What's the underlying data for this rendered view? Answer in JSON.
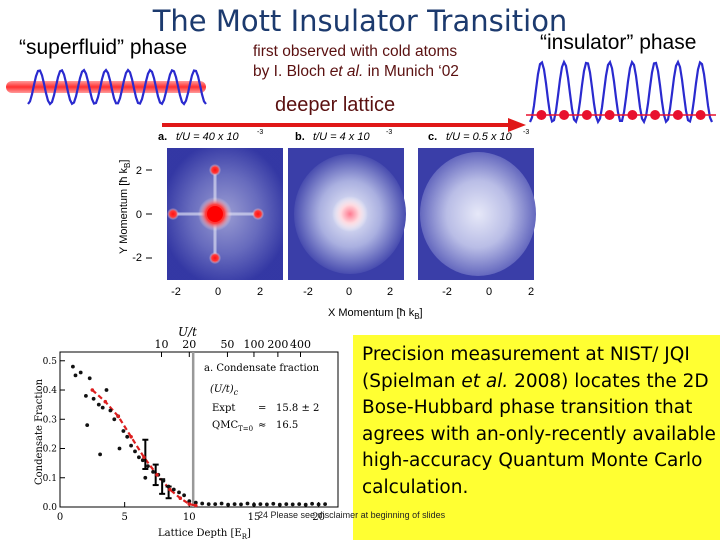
{
  "slide": {
    "title": "The Mott Insulator Transition",
    "superfluid_label": "“superfluid” phase",
    "insulator_label": "“insulator” phase",
    "citation_line1": "first observed with cold atoms",
    "citation_line2_pre": "by I. Bloch ",
    "citation_line2_em": "et al.",
    "citation_line2_post": " in Munich ‘02",
    "arrow_label": "deeper lattice",
    "disclaimer": "Please see disclaimer at beginning of slides",
    "page_number": "24"
  },
  "figure_top": {
    "panels": [
      {
        "letter": "a.",
        "label": "t/U = 40 x 10",
        "exponent": "-3"
      },
      {
        "letter": "b.",
        "label": "t/U = 4 x 10",
        "exponent": "-3"
      },
      {
        "letter": "c.",
        "label": "t/U = 0.5 x 10",
        "exponent": "-3"
      }
    ],
    "y_axis_label": "Y Momentum [ħ k",
    "y_axis_sub": "B",
    "x_axis_label": "X Momentum [ħ k",
    "x_axis_sub": "B",
    "y_ticks": [
      "2",
      "0",
      "-2"
    ],
    "x_ticks": [
      "-2",
      "0",
      "2"
    ]
  },
  "note": {
    "text_pre": "Precision measurement at NIST/ JQI (Spielman ",
    "text_em": "et al.",
    "text_post": " 2008) locates the 2D Bose-Hubbard phase transition that agrees with an-only-recently available high-accuracy Quantum Monte Carlo calculation."
  },
  "chart_data": {
    "type": "scatter",
    "title": "a. Condensate fraction",
    "xlabel": "Lattice Depth [E",
    "xlabel_sub": "R",
    "ylabel": "Condensate Fraction",
    "top_xlabel": "U/t",
    "top_ticks": [
      "10",
      "20",
      "50",
      "100",
      "200",
      "400"
    ],
    "top_tick_positions": [
      7.85,
      10.0,
      12.95,
      15.0,
      16.85,
      18.6
    ],
    "x_ticks": [
      "0",
      "5",
      "10",
      "15",
      "20"
    ],
    "y_ticks": [
      "0.0",
      "0.1",
      "0.2",
      "0.3",
      "0.4",
      "0.5"
    ],
    "xlim": [
      0,
      21.5
    ],
    "ylim": [
      0,
      0.53
    ],
    "vline_x": 10.3,
    "annotations": {
      "critical_label": "(U/t)",
      "critical_sub": "c",
      "expt_label": "Expt",
      "expt_eq": "=",
      "expt_value": "15.8 ± 2",
      "qmc_label": "QMC",
      "qmc_sub": "T=0",
      "qmc_eq": "≈",
      "qmc_value": "16.5"
    },
    "series": [
      {
        "name": "data",
        "color": "#111111",
        "x": [
          1.0,
          1.2,
          1.6,
          2.0,
          2.3,
          2.6,
          3.0,
          3.3,
          3.6,
          3.9,
          4.2,
          4.5,
          4.9,
          5.2,
          5.5,
          5.8,
          6.1,
          6.4,
          6.8,
          7.2,
          7.6,
          8.0,
          8.4,
          8.8,
          9.2,
          9.6,
          10.0,
          10.5,
          11.0,
          11.5,
          12.0,
          12.5,
          13.0,
          13.5,
          14.0,
          14.5,
          15.0,
          15.5,
          16.0,
          16.5,
          17.0,
          17.5,
          18.0,
          18.5,
          19.0,
          19.5,
          20.0,
          20.5,
          2.1,
          3.1,
          4.6,
          6.6
        ],
        "y": [
          0.48,
          0.45,
          0.46,
          0.38,
          0.44,
          0.37,
          0.35,
          0.34,
          0.4,
          0.33,
          0.3,
          0.31,
          0.26,
          0.24,
          0.21,
          0.19,
          0.17,
          0.16,
          0.14,
          0.12,
          0.11,
          0.09,
          0.07,
          0.06,
          0.05,
          0.04,
          0.02,
          0.015,
          0.012,
          0.01,
          0.01,
          0.012,
          0.008,
          0.01,
          0.009,
          0.012,
          0.008,
          0.01,
          0.009,
          0.011,
          0.008,
          0.01,
          0.009,
          0.01,
          0.008,
          0.011,
          0.009,
          0.01,
          0.28,
          0.18,
          0.2,
          0.1
        ]
      },
      {
        "name": "fit",
        "color": "#dd1f1f",
        "x": [
          2.5,
          3.5,
          4.5,
          5.5,
          6.5,
          7.5,
          8.5,
          9.3,
          10.0,
          10.5
        ],
        "y": [
          0.4,
          0.36,
          0.31,
          0.24,
          0.17,
          0.11,
          0.06,
          0.03,
          0.01,
          0.005
        ]
      }
    ],
    "error_bars": [
      {
        "x": 6.6,
        "y": 0.18,
        "err": 0.05
      },
      {
        "x": 7.4,
        "y": 0.11,
        "err": 0.035
      },
      {
        "x": 7.9,
        "y": 0.07,
        "err": 0.025
      },
      {
        "x": 8.4,
        "y": 0.05,
        "err": 0.02
      }
    ]
  }
}
